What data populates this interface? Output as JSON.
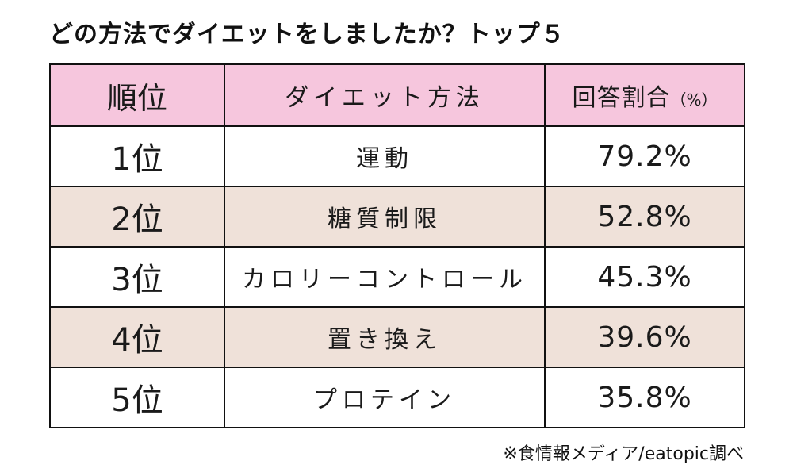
{
  "title": "どの方法でダイエットをしましたか？トップ５",
  "chart_data": {
    "type": "table",
    "columns": {
      "rank": "順位",
      "method": "ダイエット方法",
      "ratio": "回答割合",
      "ratio_unit": "（%）"
    },
    "rows": [
      {
        "rank": "1位",
        "method": "運動",
        "ratio": "79.2%",
        "value": 79.2
      },
      {
        "rank": "2位",
        "method": "糖質制限",
        "ratio": "52.8%",
        "value": 52.8
      },
      {
        "rank": "3位",
        "method": "カロリーコントロール",
        "ratio": "45.3%",
        "value": 45.3
      },
      {
        "rank": "4位",
        "method": "置き換え",
        "ratio": "39.6%",
        "value": 39.6
      },
      {
        "rank": "5位",
        "method": "プロテイン",
        "ratio": "35.8%",
        "value": 35.8
      }
    ]
  },
  "source": "※食情報メディア/eatopic調べ",
  "colors": {
    "header_bg": "#f6c6dd",
    "stripe_bg": "#efe1d9",
    "border": "#111111"
  }
}
